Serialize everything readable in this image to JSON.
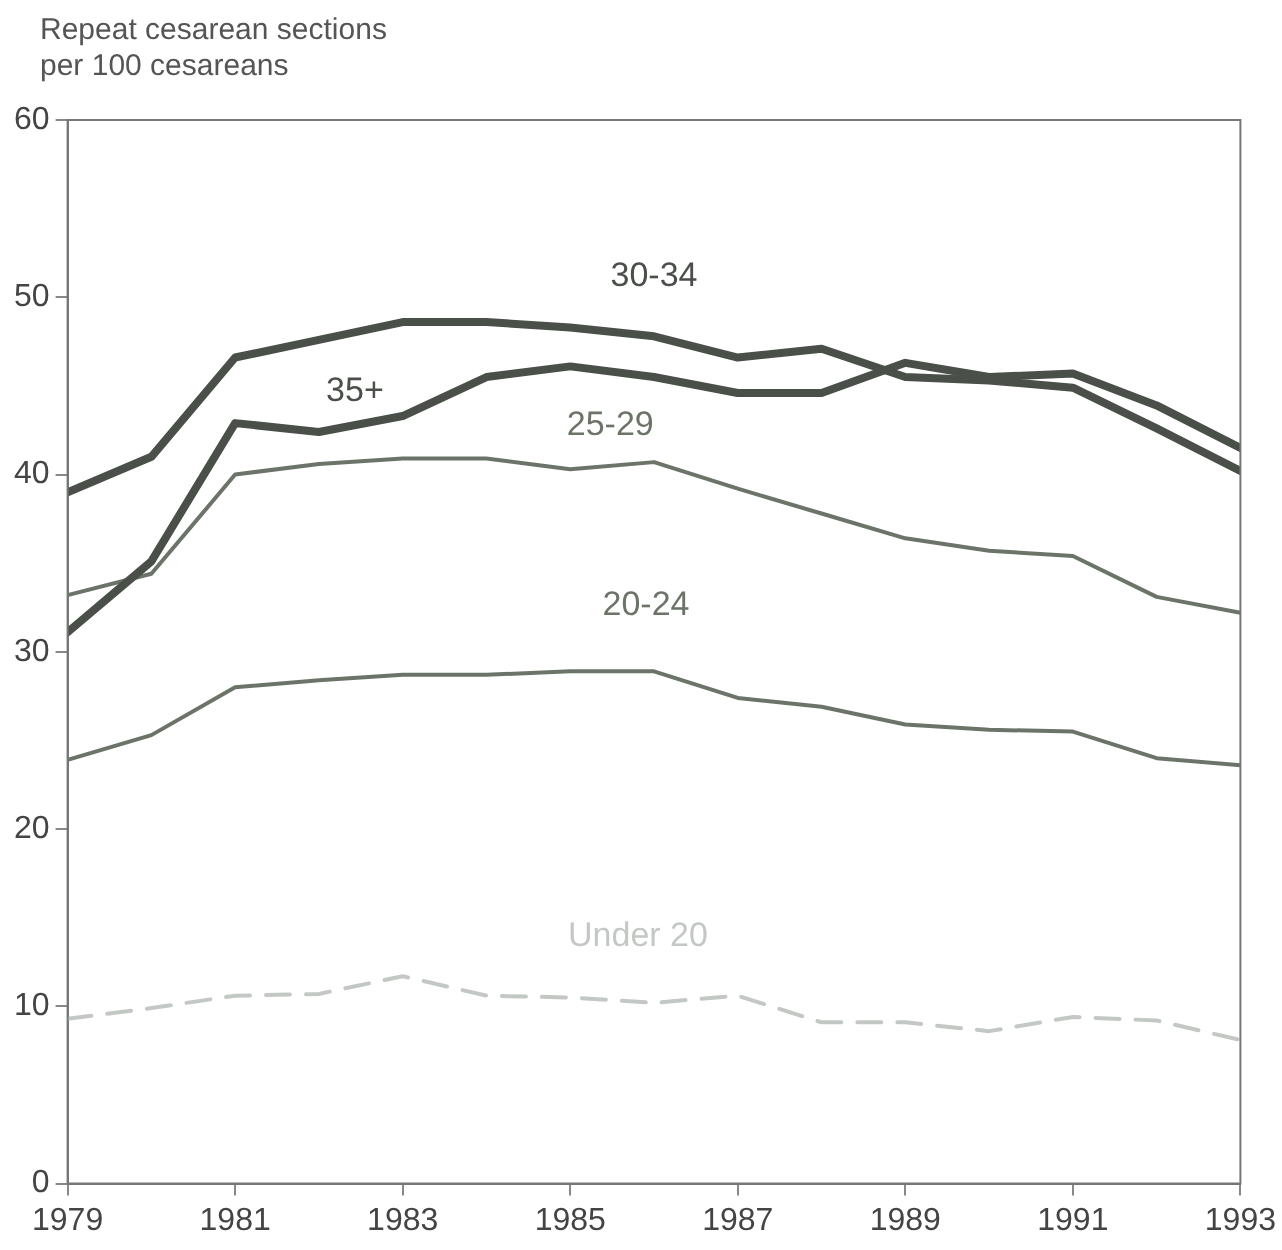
{
  "chart_data": {
    "type": "line",
    "ylabel": "Repeat cesarean sections\nper 100 cesareans",
    "x": [
      1979,
      1980,
      1981,
      1982,
      1983,
      1984,
      1985,
      1986,
      1987,
      1988,
      1989,
      1990,
      1991,
      1992,
      1993
    ],
    "xlim": [
      1979,
      1993
    ],
    "xticks": [
      1979,
      1981,
      1983,
      1985,
      1987,
      1989,
      1991,
      1993
    ],
    "ylim": [
      0,
      60
    ],
    "yticks": [
      0,
      10,
      20,
      30,
      40,
      50,
      60
    ],
    "grid": false,
    "legend": false,
    "marker": "none",
    "series": [
      {
        "name": "30-34",
        "color": "#4a4f4a",
        "line_style": "solid",
        "values": [
          39.0,
          41.0,
          46.6,
          47.6,
          48.6,
          48.6,
          48.3,
          47.8,
          46.6,
          47.1,
          45.5,
          45.3,
          44.9,
          42.6,
          40.2
        ]
      },
      {
        "name": "35+",
        "color": "#4a4f4a",
        "line_style": "solid",
        "values": [
          31.1,
          35.1,
          42.9,
          42.4,
          43.3,
          45.5,
          46.1,
          45.5,
          44.6,
          44.6,
          46.3,
          45.5,
          45.7,
          43.9,
          41.5
        ]
      },
      {
        "name": "25-29",
        "color": "#6c746a",
        "line_style": "solid",
        "values": [
          33.2,
          34.4,
          40.0,
          40.6,
          40.9,
          40.9,
          40.3,
          40.7,
          39.2,
          37.8,
          36.4,
          35.7,
          35.4,
          33.1,
          32.2
        ]
      },
      {
        "name": "20-24",
        "color": "#6c746a",
        "line_style": "solid",
        "values": [
          23.9,
          25.3,
          28.0,
          28.4,
          28.7,
          28.7,
          28.9,
          28.9,
          27.4,
          26.9,
          25.9,
          25.6,
          25.5,
          24.0,
          23.6
        ]
      },
      {
        "name": "Under 20",
        "color": "#c4c8c4",
        "line_style": "dashed",
        "values": [
          9.3,
          9.9,
          10.6,
          10.7,
          11.7,
          10.6,
          10.5,
          10.2,
          10.6,
          9.1,
          9.1,
          8.6,
          9.4,
          9.2,
          8.1
        ]
      }
    ]
  }
}
